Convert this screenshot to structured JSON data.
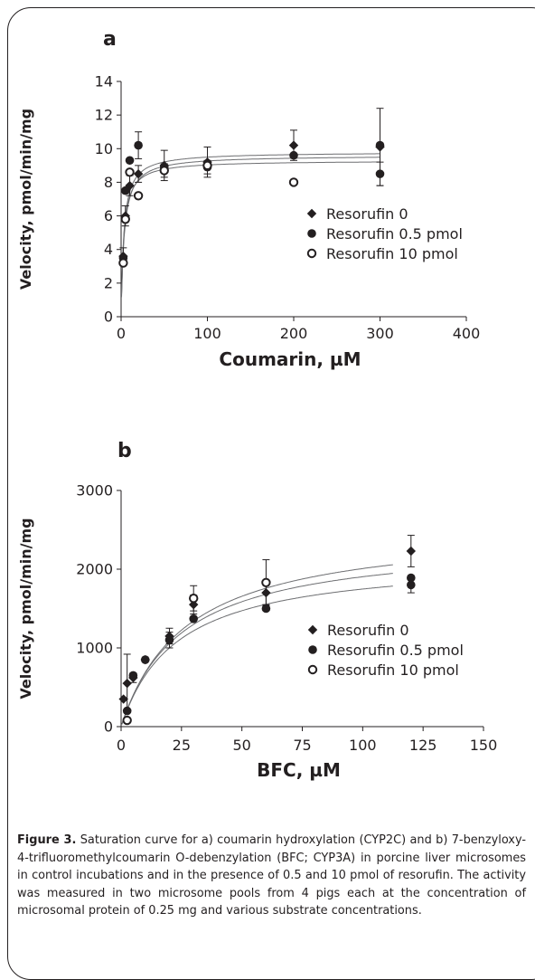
{
  "figure": {
    "caption_label": "Figure 3.",
    "caption_text": "Saturation curve for a) coumarin hydroxylation (CYP2C) and b) 7-benzyloxy-4-trifluoromethylcoumarin O-debenzylation (BFC; CYP3A) in porcine liver microsomes in control incubations and in the presence of 0.5 and 10 pmol of resorufin. The activity was measured in two microsome pools from 4 pigs each at the concentration of microsomal protein of 0.25 mg and various substrate concentrations."
  },
  "chart_data": [
    {
      "type": "scatter",
      "panel_label": "a",
      "xlabel": "Coumarin, µM",
      "ylabel": "Velocity, pmol/min/mg",
      "xlim": [
        0,
        400
      ],
      "ylim": [
        0,
        14
      ],
      "xticks": [
        0,
        100,
        200,
        300,
        400
      ],
      "yticks": [
        0,
        2,
        4,
        6,
        8,
        10,
        12,
        14
      ],
      "grid": false,
      "legend_position": "center-right",
      "fits": [
        {
          "vmax": 9.8,
          "km": 3.2
        },
        {
          "vmax": 9.6,
          "km": 3.6
        },
        {
          "vmax": 9.3,
          "km": 3.0
        }
      ],
      "series": [
        {
          "name": "Resorufin 0",
          "marker": "diamond",
          "x": [
            2.5,
            5,
            10,
            20,
            50,
            100,
            200,
            300
          ],
          "y": [
            3.6,
            6.0,
            7.8,
            8.5,
            9.0,
            9.2,
            10.2,
            10.1
          ],
          "err": [
            0.5,
            0.6,
            0.6,
            0.5,
            0.9,
            0.9,
            0.9,
            2.3
          ]
        },
        {
          "name": "Resorufin 0.5 pmol",
          "marker": "filled-circle",
          "x": [
            2.5,
            5,
            10,
            20,
            50,
            100,
            200,
            300,
            300
          ],
          "y": [
            3.5,
            7.5,
            9.3,
            10.2,
            8.9,
            8.9,
            9.6,
            8.5,
            10.2
          ],
          "err": [
            0,
            0,
            0,
            0.8,
            0,
            0.4,
            0,
            0.7,
            0
          ]
        },
        {
          "name": "Resorufin 10 pmol",
          "marker": "open-circle",
          "x": [
            2.5,
            5,
            10,
            20,
            50,
            100,
            200
          ],
          "y": [
            3.2,
            5.8,
            8.6,
            7.2,
            8.7,
            9.0,
            8.0
          ],
          "err": [
            0,
            0,
            0,
            0,
            0.4,
            0,
            0
          ]
        }
      ]
    },
    {
      "type": "scatter",
      "panel_label": "b",
      "xlabel": "BFC, µM",
      "ylabel": "Velocity, pmol/min/mg",
      "xlim": [
        0,
        150
      ],
      "ylim": [
        0,
        3000
      ],
      "xticks": [
        0,
        25,
        50,
        75,
        100,
        125,
        150
      ],
      "yticks": [
        0,
        1000,
        2000,
        3000
      ],
      "grid": false,
      "legend_position": "center-right",
      "fits": [
        {
          "vmax": 2550,
          "km": 27
        },
        {
          "vmax": 2380,
          "km": 25
        },
        {
          "vmax": 2150,
          "km": 23
        }
      ],
      "series": [
        {
          "name": "Resorufin 0",
          "marker": "diamond",
          "x": [
            1,
            2.5,
            5,
            10,
            20,
            30,
            60,
            120
          ],
          "y": [
            350,
            550,
            620,
            850,
            1150,
            1550,
            1700,
            2230
          ],
          "err": [
            0,
            370,
            60,
            0,
            100,
            120,
            150,
            200
          ]
        },
        {
          "name": "Resorufin 0.5 pmol",
          "marker": "filled-circle",
          "x": [
            2.5,
            5,
            10,
            20,
            30,
            60,
            120,
            120
          ],
          "y": [
            200,
            650,
            850,
            1100,
            1370,
            1500,
            1800,
            1890
          ],
          "err": [
            0,
            0,
            0,
            100,
            0,
            0,
            100,
            0
          ]
        },
        {
          "name": "Resorufin 10 pmol",
          "marker": "open-circle",
          "x": [
            2.5,
            30,
            60
          ],
          "y": [
            80,
            1630,
            1830
          ],
          "err": [
            0,
            160,
            290
          ]
        }
      ]
    }
  ]
}
